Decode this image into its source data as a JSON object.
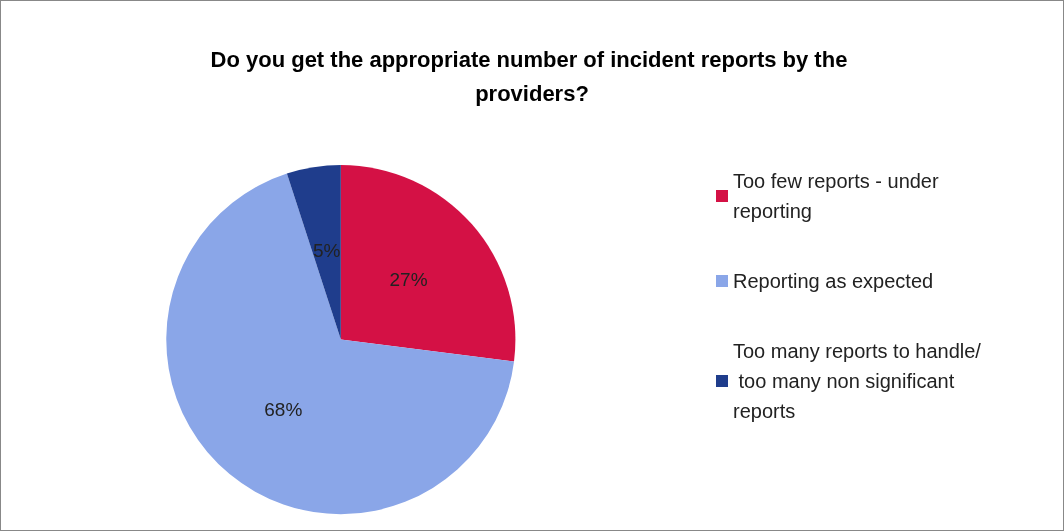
{
  "chart_data": {
    "type": "pie",
    "title": "Do you get the appropriate number of incident reports by the providers?",
    "categories": [
      "Too few reports - under reporting",
      "Reporting as expected",
      "Too many reports to handle/ too many non significant reports"
    ],
    "values": [
      27,
      68,
      5
    ],
    "colors": [
      "#d41145",
      "#8aa6e8",
      "#1f3d8c"
    ],
    "value_labels": [
      "27%",
      "68%",
      "5%"
    ],
    "legend": "right"
  }
}
